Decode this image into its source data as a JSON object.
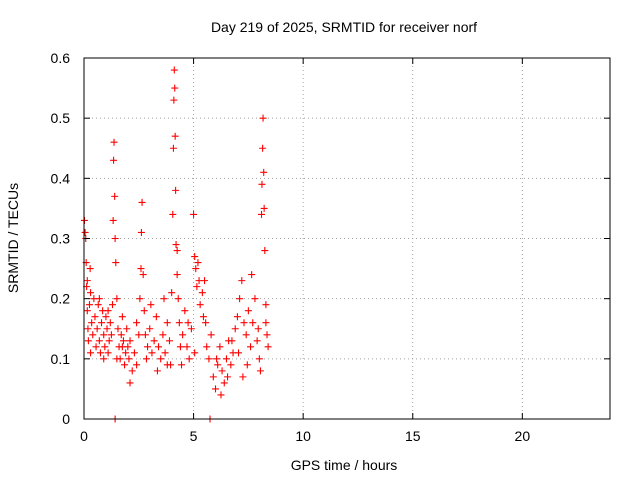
{
  "chart_data": {
    "type": "scatter",
    "title": "Day 219 of 2025, SRMTID for receiver norf",
    "xlabel": "GPS time / hours",
    "ylabel": "SRMTID / TECUs",
    "xlim": [
      0,
      24
    ],
    "ylim": [
      0,
      0.6
    ],
    "xticks": [
      "0",
      "5",
      "10",
      "15",
      "20"
    ],
    "yticks": [
      "0",
      "0.1",
      "0.2",
      "0.3",
      "0.4",
      "0.5",
      "0.6"
    ],
    "grid": true,
    "marker": "plus",
    "color": "#ff0000",
    "series": [
      {
        "name": "SRMTID",
        "points": [
          [
            0.02,
            0.33
          ],
          [
            0.05,
            0.31
          ],
          [
            0.08,
            0.3
          ],
          [
            0.1,
            0.26
          ],
          [
            0.12,
            0.22
          ],
          [
            0.15,
            0.18
          ],
          [
            0.18,
            0.15
          ],
          [
            0.2,
            0.13
          ],
          [
            0.25,
            0.19
          ],
          [
            0.28,
            0.25
          ],
          [
            0.3,
            0.21
          ],
          [
            0.35,
            0.16
          ],
          [
            0.4,
            0.14
          ],
          [
            0.45,
            0.2
          ],
          [
            0.5,
            0.17
          ],
          [
            0.55,
            0.12
          ],
          [
            0.6,
            0.15
          ],
          [
            0.65,
            0.19
          ],
          [
            0.7,
            0.13
          ],
          [
            0.75,
            0.11
          ],
          [
            0.8,
            0.16
          ],
          [
            0.85,
            0.18
          ],
          [
            0.9,
            0.14
          ],
          [
            0.95,
            0.12
          ],
          [
            1.0,
            0.17
          ],
          [
            1.05,
            0.15
          ],
          [
            1.1,
            0.11
          ],
          [
            1.15,
            0.13
          ],
          [
            1.2,
            0.16
          ],
          [
            1.25,
            0.14
          ],
          [
            1.3,
            0.19
          ],
          [
            1.33,
            0.33
          ],
          [
            1.35,
            0.43
          ],
          [
            1.37,
            0.46
          ],
          [
            1.4,
            0.37
          ],
          [
            1.42,
            0.3
          ],
          [
            1.45,
            0.26
          ],
          [
            1.5,
            0.2
          ],
          [
            1.55,
            0.15
          ],
          [
            1.6,
            0.12
          ],
          [
            1.65,
            0.1
          ],
          [
            1.7,
            0.14
          ],
          [
            1.75,
            0.17
          ],
          [
            1.8,
            0.13
          ],
          [
            1.85,
            0.09
          ],
          [
            1.9,
            0.11
          ],
          [
            1.95,
            0.15
          ],
          [
            2.0,
            0.12
          ],
          [
            2.05,
            0.1
          ],
          [
            2.1,
            0.13
          ],
          [
            2.2,
            0.08
          ],
          [
            2.3,
            0.11
          ],
          [
            2.4,
            0.09
          ],
          [
            2.5,
            0.14
          ],
          [
            2.55,
            0.2
          ],
          [
            2.6,
            0.25
          ],
          [
            2.62,
            0.31
          ],
          [
            2.65,
            0.36
          ],
          [
            2.7,
            0.24
          ],
          [
            2.75,
            0.18
          ],
          [
            2.8,
            0.14
          ],
          [
            2.9,
            0.12
          ],
          [
            3.0,
            0.15
          ],
          [
            3.1,
            0.11
          ],
          [
            3.2,
            0.13
          ],
          [
            3.3,
            0.17
          ],
          [
            3.4,
            0.12
          ],
          [
            3.5,
            0.1
          ],
          [
            3.6,
            0.14
          ],
          [
            3.7,
            0.11
          ],
          [
            3.8,
            0.16
          ],
          [
            3.9,
            0.13
          ],
          [
            4.0,
            0.21
          ],
          [
            4.05,
            0.34
          ],
          [
            4.08,
            0.45
          ],
          [
            4.1,
            0.53
          ],
          [
            4.12,
            0.58
          ],
          [
            4.14,
            0.55
          ],
          [
            4.16,
            0.47
          ],
          [
            4.18,
            0.38
          ],
          [
            4.2,
            0.29
          ],
          [
            4.25,
            0.24
          ],
          [
            4.3,
            0.2
          ],
          [
            4.35,
            0.16
          ],
          [
            4.4,
            0.12
          ],
          [
            4.5,
            0.14
          ],
          [
            4.6,
            0.18
          ],
          [
            4.7,
            0.12
          ],
          [
            4.8,
            0.1
          ],
          [
            4.9,
            0.15
          ],
          [
            5.0,
            0.34
          ],
          [
            5.05,
            0.27
          ],
          [
            5.1,
            0.25
          ],
          [
            5.15,
            0.22
          ],
          [
            5.2,
            0.26
          ],
          [
            5.25,
            0.23
          ],
          [
            5.3,
            0.19
          ],
          [
            5.4,
            0.21
          ],
          [
            5.45,
            0.17
          ],
          [
            5.5,
            0.23
          ],
          [
            5.6,
            0.12
          ],
          [
            5.7,
            0.1
          ],
          [
            5.75,
            0.0
          ],
          [
            5.8,
            0.14
          ],
          [
            5.9,
            0.07
          ],
          [
            6.0,
            0.05
          ],
          [
            6.1,
            0.09
          ],
          [
            6.2,
            0.12
          ],
          [
            6.3,
            0.08
          ],
          [
            6.4,
            0.06
          ],
          [
            6.5,
            0.1
          ],
          [
            6.6,
            0.13
          ],
          [
            6.7,
            0.09
          ],
          [
            6.8,
            0.11
          ],
          [
            6.9,
            0.15
          ],
          [
            7.0,
            0.17
          ],
          [
            7.1,
            0.2
          ],
          [
            7.2,
            0.23
          ],
          [
            7.3,
            0.16
          ],
          [
            7.4,
            0.14
          ],
          [
            7.5,
            0.18
          ],
          [
            7.6,
            0.12
          ],
          [
            7.7,
            0.16
          ],
          [
            7.8,
            0.2
          ],
          [
            7.9,
            0.13
          ],
          [
            8.0,
            0.1
          ],
          [
            8.05,
            0.08
          ],
          [
            8.1,
            0.34
          ],
          [
            8.12,
            0.39
          ],
          [
            8.15,
            0.45
          ],
          [
            8.17,
            0.5
          ],
          [
            8.2,
            0.41
          ],
          [
            8.22,
            0.35
          ],
          [
            8.25,
            0.28
          ],
          [
            8.3,
            0.19
          ],
          [
            8.35,
            0.14
          ],
          [
            8.4,
            0.12
          ],
          [
            0.3,
            0.11
          ],
          [
            0.7,
            0.2
          ],
          [
            1.1,
            0.18
          ],
          [
            1.5,
            0.1
          ],
          [
            1.75,
            0.12
          ],
          [
            2.1,
            0.06
          ],
          [
            2.4,
            0.16
          ],
          [
            3.05,
            0.19
          ],
          [
            3.35,
            0.08
          ],
          [
            3.65,
            0.2
          ],
          [
            3.95,
            0.09
          ],
          [
            4.45,
            0.09
          ],
          [
            4.75,
            0.16
          ],
          [
            5.05,
            0.11
          ],
          [
            5.55,
            0.16
          ],
          [
            6.05,
            0.1
          ],
          [
            6.55,
            0.07
          ],
          [
            7.05,
            0.11
          ],
          [
            7.45,
            0.09
          ],
          [
            7.95,
            0.15
          ],
          [
            0.15,
            0.23
          ],
          [
            1.42,
            0.0
          ],
          [
            2.85,
            0.1
          ],
          [
            4.25,
            0.28
          ],
          [
            6.25,
            0.04
          ],
          [
            6.75,
            0.13
          ],
          [
            7.25,
            0.07
          ],
          [
            7.65,
            0.24
          ],
          [
            8.3,
            0.16
          ],
          [
            0.9,
            0.1
          ],
          [
            3.8,
            0.09
          ]
        ]
      }
    ]
  }
}
